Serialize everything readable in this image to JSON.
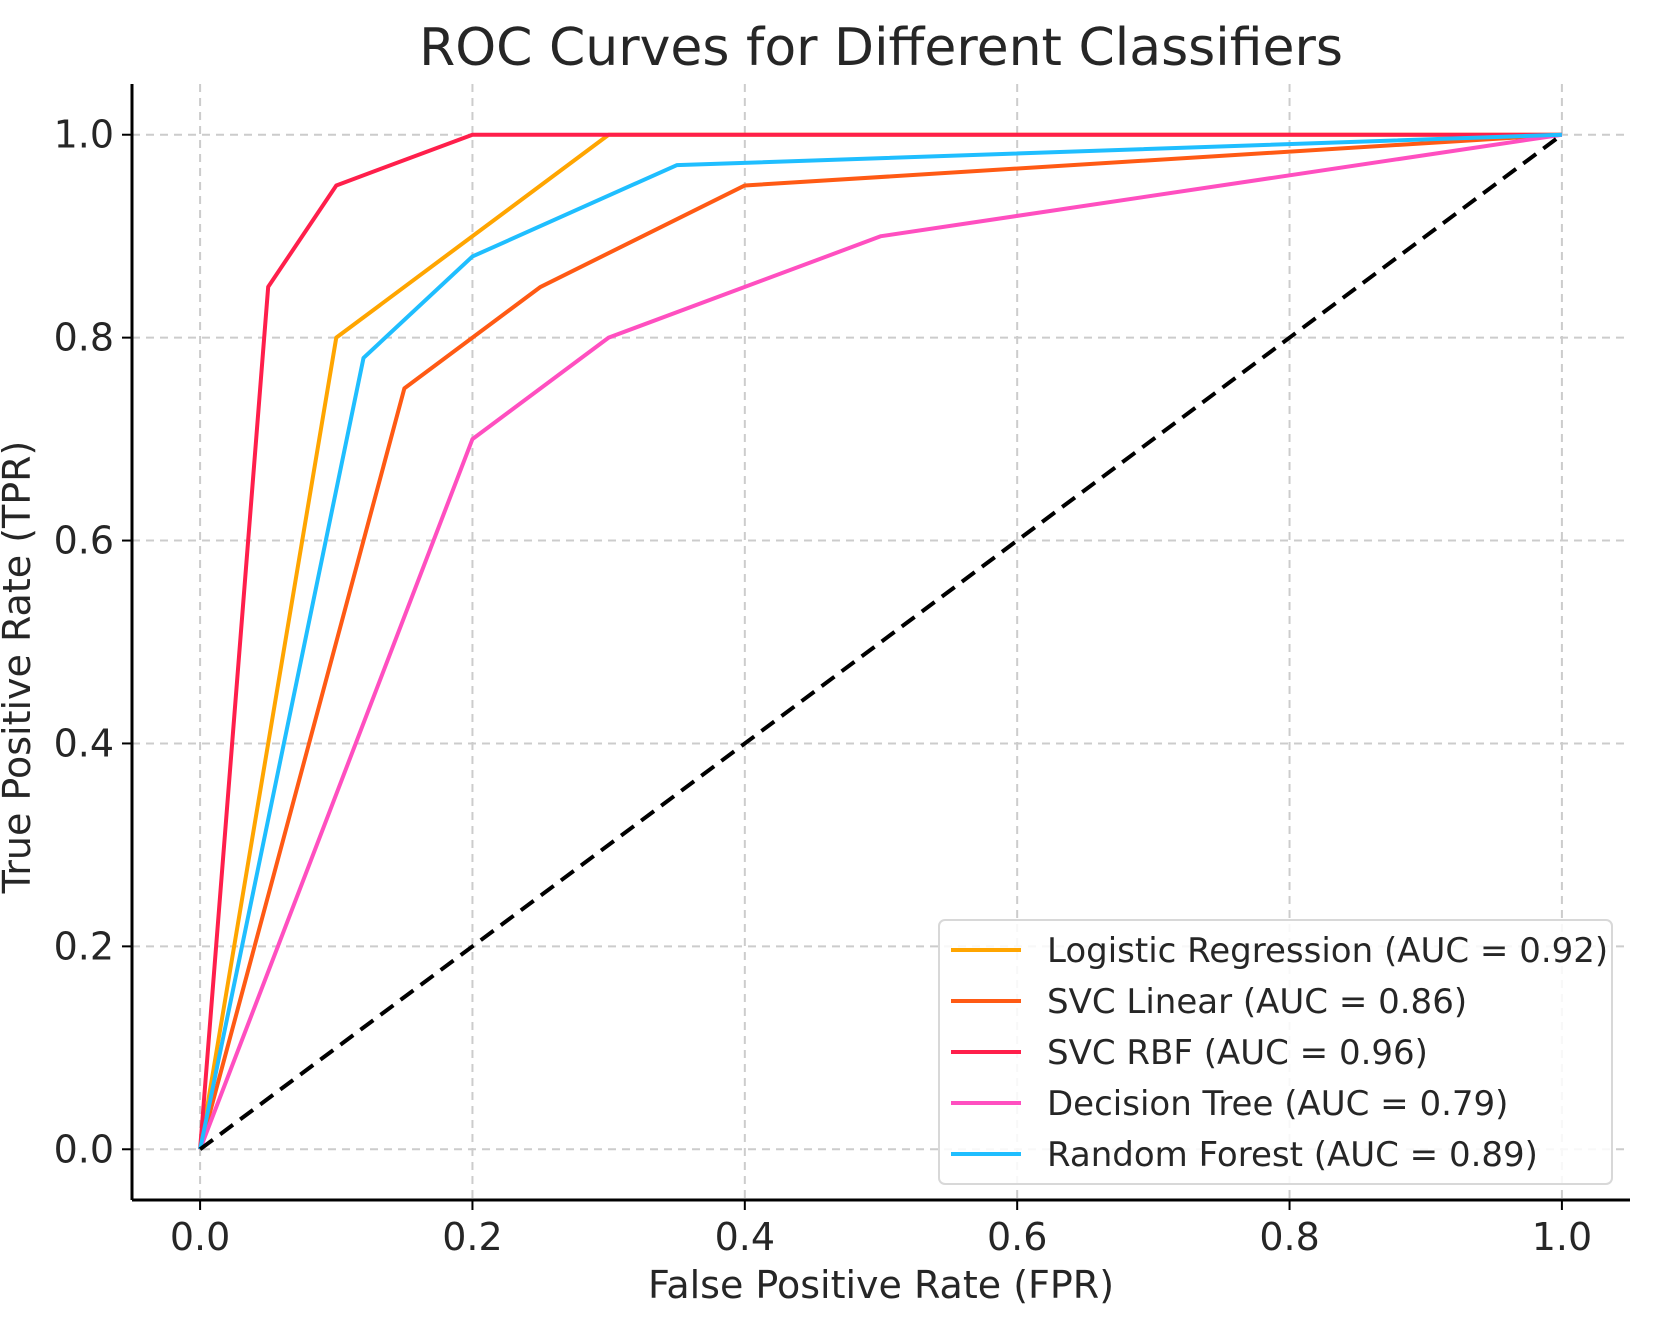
{
  "chart_data": {
    "type": "line",
    "title": "ROC Curves for Different Classifiers",
    "xlabel": "False Positive Rate (FPR)",
    "ylabel": "True Positive Rate (TPR)",
    "xlim": [
      -0.05,
      1.05
    ],
    "ylim": [
      -0.05,
      1.05
    ],
    "xticks": [
      "0.0",
      "0.2",
      "0.4",
      "0.6",
      "0.8",
      "1.0"
    ],
    "yticks": [
      "0.0",
      "0.2",
      "0.4",
      "0.6",
      "0.8",
      "1.0"
    ],
    "grid": true,
    "legend_position": "lower-right",
    "series": [
      {
        "name": "Logistic Regression (AUC = 0.92)",
        "color": "#FFA500",
        "x": [
          0,
          0.1,
          0.3,
          1.0
        ],
        "y": [
          0,
          0.8,
          1.0,
          1.0
        ]
      },
      {
        "name": "SVC Linear (AUC = 0.86)",
        "color": "#FF5A14",
        "x": [
          0,
          0.15,
          0.25,
          0.4,
          1.0
        ],
        "y": [
          0,
          0.75,
          0.85,
          0.95,
          1.0
        ]
      },
      {
        "name": "SVC RBF (AUC = 0.96)",
        "color": "#FF1F4B",
        "x": [
          0,
          0.05,
          0.1,
          0.2,
          1.0
        ],
        "y": [
          0,
          0.85,
          0.95,
          1.0,
          1.0
        ]
      },
      {
        "name": "Decision Tree (AUC = 0.79)",
        "color": "#FF4FC0",
        "x": [
          0,
          0.2,
          0.3,
          0.5,
          1.0
        ],
        "y": [
          0,
          0.7,
          0.8,
          0.9,
          1.0
        ]
      },
      {
        "name": "Random Forest (AUC = 0.89)",
        "color": "#1FBEFF",
        "x": [
          0,
          0.12,
          0.2,
          0.35,
          1.0
        ],
        "y": [
          0,
          0.78,
          0.88,
          0.97,
          1.0
        ]
      }
    ],
    "reference_line": {
      "x": [
        0,
        1
      ],
      "y": [
        0,
        1
      ],
      "color": "#000000",
      "style": "dashed"
    }
  }
}
